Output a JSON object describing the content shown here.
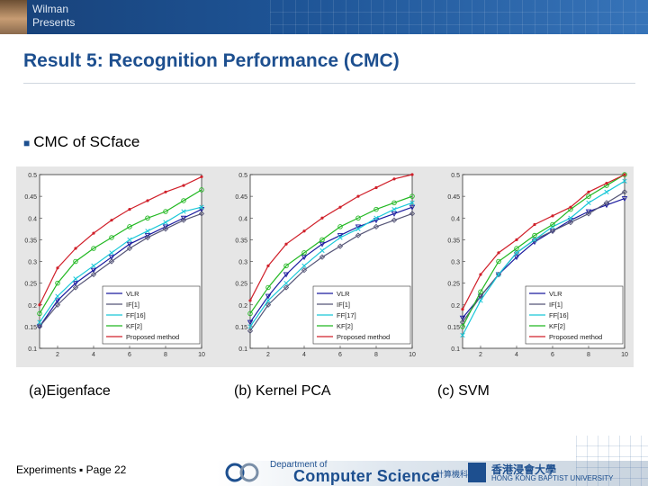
{
  "header": {
    "presenter_line1": "Wilman",
    "presenter_line2": "Presents"
  },
  "slide": {
    "title": "Result 5: Recognition Performance (CMC)",
    "bullet": "CMC of SCface",
    "captions": [
      "(a)Eigenface",
      "(b) Kernel PCA",
      "(c)  SVM"
    ]
  },
  "footer": {
    "section": "Experiments",
    "page": "Page 22",
    "dept_line1": "Department of",
    "dept_line2": "Computer Science",
    "dept_chinese": "計算機科學系",
    "uni_chinese": "香港浸會大學",
    "uni_english": "HONG KONG BAPTIST UNIVERSITY"
  },
  "colors": {
    "VLR": "#1a1a9e",
    "IF": "#555577",
    "FF": "#19c8d8",
    "KF": "#22b822",
    "Proposed": "#d0202a"
  },
  "chart_data": [
    {
      "type": "line",
      "x": [
        1,
        2,
        3,
        4,
        5,
        6,
        7,
        8,
        9,
        10
      ],
      "ylim": [
        0.1,
        0.5
      ],
      "xticks": [
        "2",
        "4",
        "6",
        "8",
        "10"
      ],
      "yticks": [
        "0.1",
        "0.15",
        "0.2",
        "0.25",
        "0.3",
        "0.35",
        "0.4",
        "0.45",
        "0.5"
      ],
      "series": [
        {
          "name": "VLR",
          "marker": "triangle-down",
          "values": [
            0.15,
            0.21,
            0.25,
            0.28,
            0.31,
            0.34,
            0.36,
            0.38,
            0.4,
            0.42
          ]
        },
        {
          "name": "IF[1]",
          "marker": "diamond",
          "values": [
            0.15,
            0.2,
            0.24,
            0.27,
            0.3,
            0.33,
            0.355,
            0.375,
            0.395,
            0.41
          ]
        },
        {
          "name": "FF[16]",
          "marker": "x",
          "values": [
            0.16,
            0.22,
            0.26,
            0.29,
            0.32,
            0.35,
            0.37,
            0.39,
            0.415,
            0.425
          ]
        },
        {
          "name": "KF[2]",
          "marker": "circle",
          "values": [
            0.18,
            0.25,
            0.3,
            0.33,
            0.355,
            0.38,
            0.4,
            0.415,
            0.44,
            0.465
          ]
        },
        {
          "name": "Proposed method",
          "marker": "dot",
          "values": [
            0.2,
            0.285,
            0.33,
            0.365,
            0.395,
            0.42,
            0.44,
            0.46,
            0.475,
            0.495
          ]
        }
      ]
    },
    {
      "type": "line",
      "x": [
        1,
        2,
        3,
        4,
        5,
        6,
        7,
        8,
        9,
        10
      ],
      "ylim": [
        0.1,
        0.5
      ],
      "xticks": [
        "2",
        "4",
        "6",
        "8",
        "10"
      ],
      "yticks": [
        "0.1",
        "0.15",
        "0.2",
        "0.25",
        "0.3",
        "0.35",
        "0.4",
        "0.45",
        "0.5"
      ],
      "series": [
        {
          "name": "VLR",
          "marker": "triangle-down",
          "values": [
            0.16,
            0.22,
            0.27,
            0.31,
            0.34,
            0.36,
            0.38,
            0.395,
            0.41,
            0.425
          ]
        },
        {
          "name": "IF[1]",
          "marker": "diamond",
          "values": [
            0.14,
            0.2,
            0.24,
            0.28,
            0.31,
            0.335,
            0.36,
            0.38,
            0.395,
            0.41
          ]
        },
        {
          "name": "FF[17]",
          "marker": "x",
          "values": [
            0.15,
            0.21,
            0.25,
            0.29,
            0.325,
            0.355,
            0.375,
            0.4,
            0.42,
            0.435
          ]
        },
        {
          "name": "KF[2]",
          "marker": "circle",
          "values": [
            0.18,
            0.24,
            0.29,
            0.32,
            0.35,
            0.38,
            0.4,
            0.42,
            0.435,
            0.45
          ]
        },
        {
          "name": "Proposed method",
          "marker": "dot",
          "values": [
            0.21,
            0.29,
            0.34,
            0.37,
            0.4,
            0.425,
            0.45,
            0.47,
            0.49,
            0.5
          ]
        }
      ]
    },
    {
      "type": "line",
      "x": [
        1,
        2,
        3,
        4,
        5,
        6,
        7,
        8,
        9,
        10
      ],
      "ylim": [
        0.1,
        0.5
      ],
      "xticks": [
        "2",
        "4",
        "6",
        "8",
        "10"
      ],
      "yticks": [
        "0.1",
        "0.15",
        "0.2",
        "0.25",
        "0.3",
        "0.35",
        "0.4",
        "0.45",
        "0.5"
      ],
      "series": [
        {
          "name": "VLR",
          "marker": "triangle-down",
          "values": [
            0.17,
            0.22,
            0.27,
            0.31,
            0.345,
            0.37,
            0.395,
            0.415,
            0.43,
            0.445
          ]
        },
        {
          "name": "IF[1]",
          "marker": "diamond",
          "values": [
            0.16,
            0.22,
            0.27,
            0.32,
            0.35,
            0.37,
            0.39,
            0.41,
            0.435,
            0.46
          ]
        },
        {
          "name": "FF[16]",
          "marker": "x",
          "values": [
            0.13,
            0.21,
            0.27,
            0.32,
            0.35,
            0.38,
            0.4,
            0.435,
            0.46,
            0.485
          ]
        },
        {
          "name": "KF[2]",
          "marker": "circle",
          "values": [
            0.15,
            0.23,
            0.3,
            0.33,
            0.36,
            0.385,
            0.42,
            0.45,
            0.475,
            0.5
          ]
        },
        {
          "name": "Proposed method",
          "marker": "dot",
          "values": [
            0.19,
            0.27,
            0.32,
            0.35,
            0.385,
            0.405,
            0.425,
            0.46,
            0.48,
            0.5
          ]
        }
      ]
    }
  ]
}
